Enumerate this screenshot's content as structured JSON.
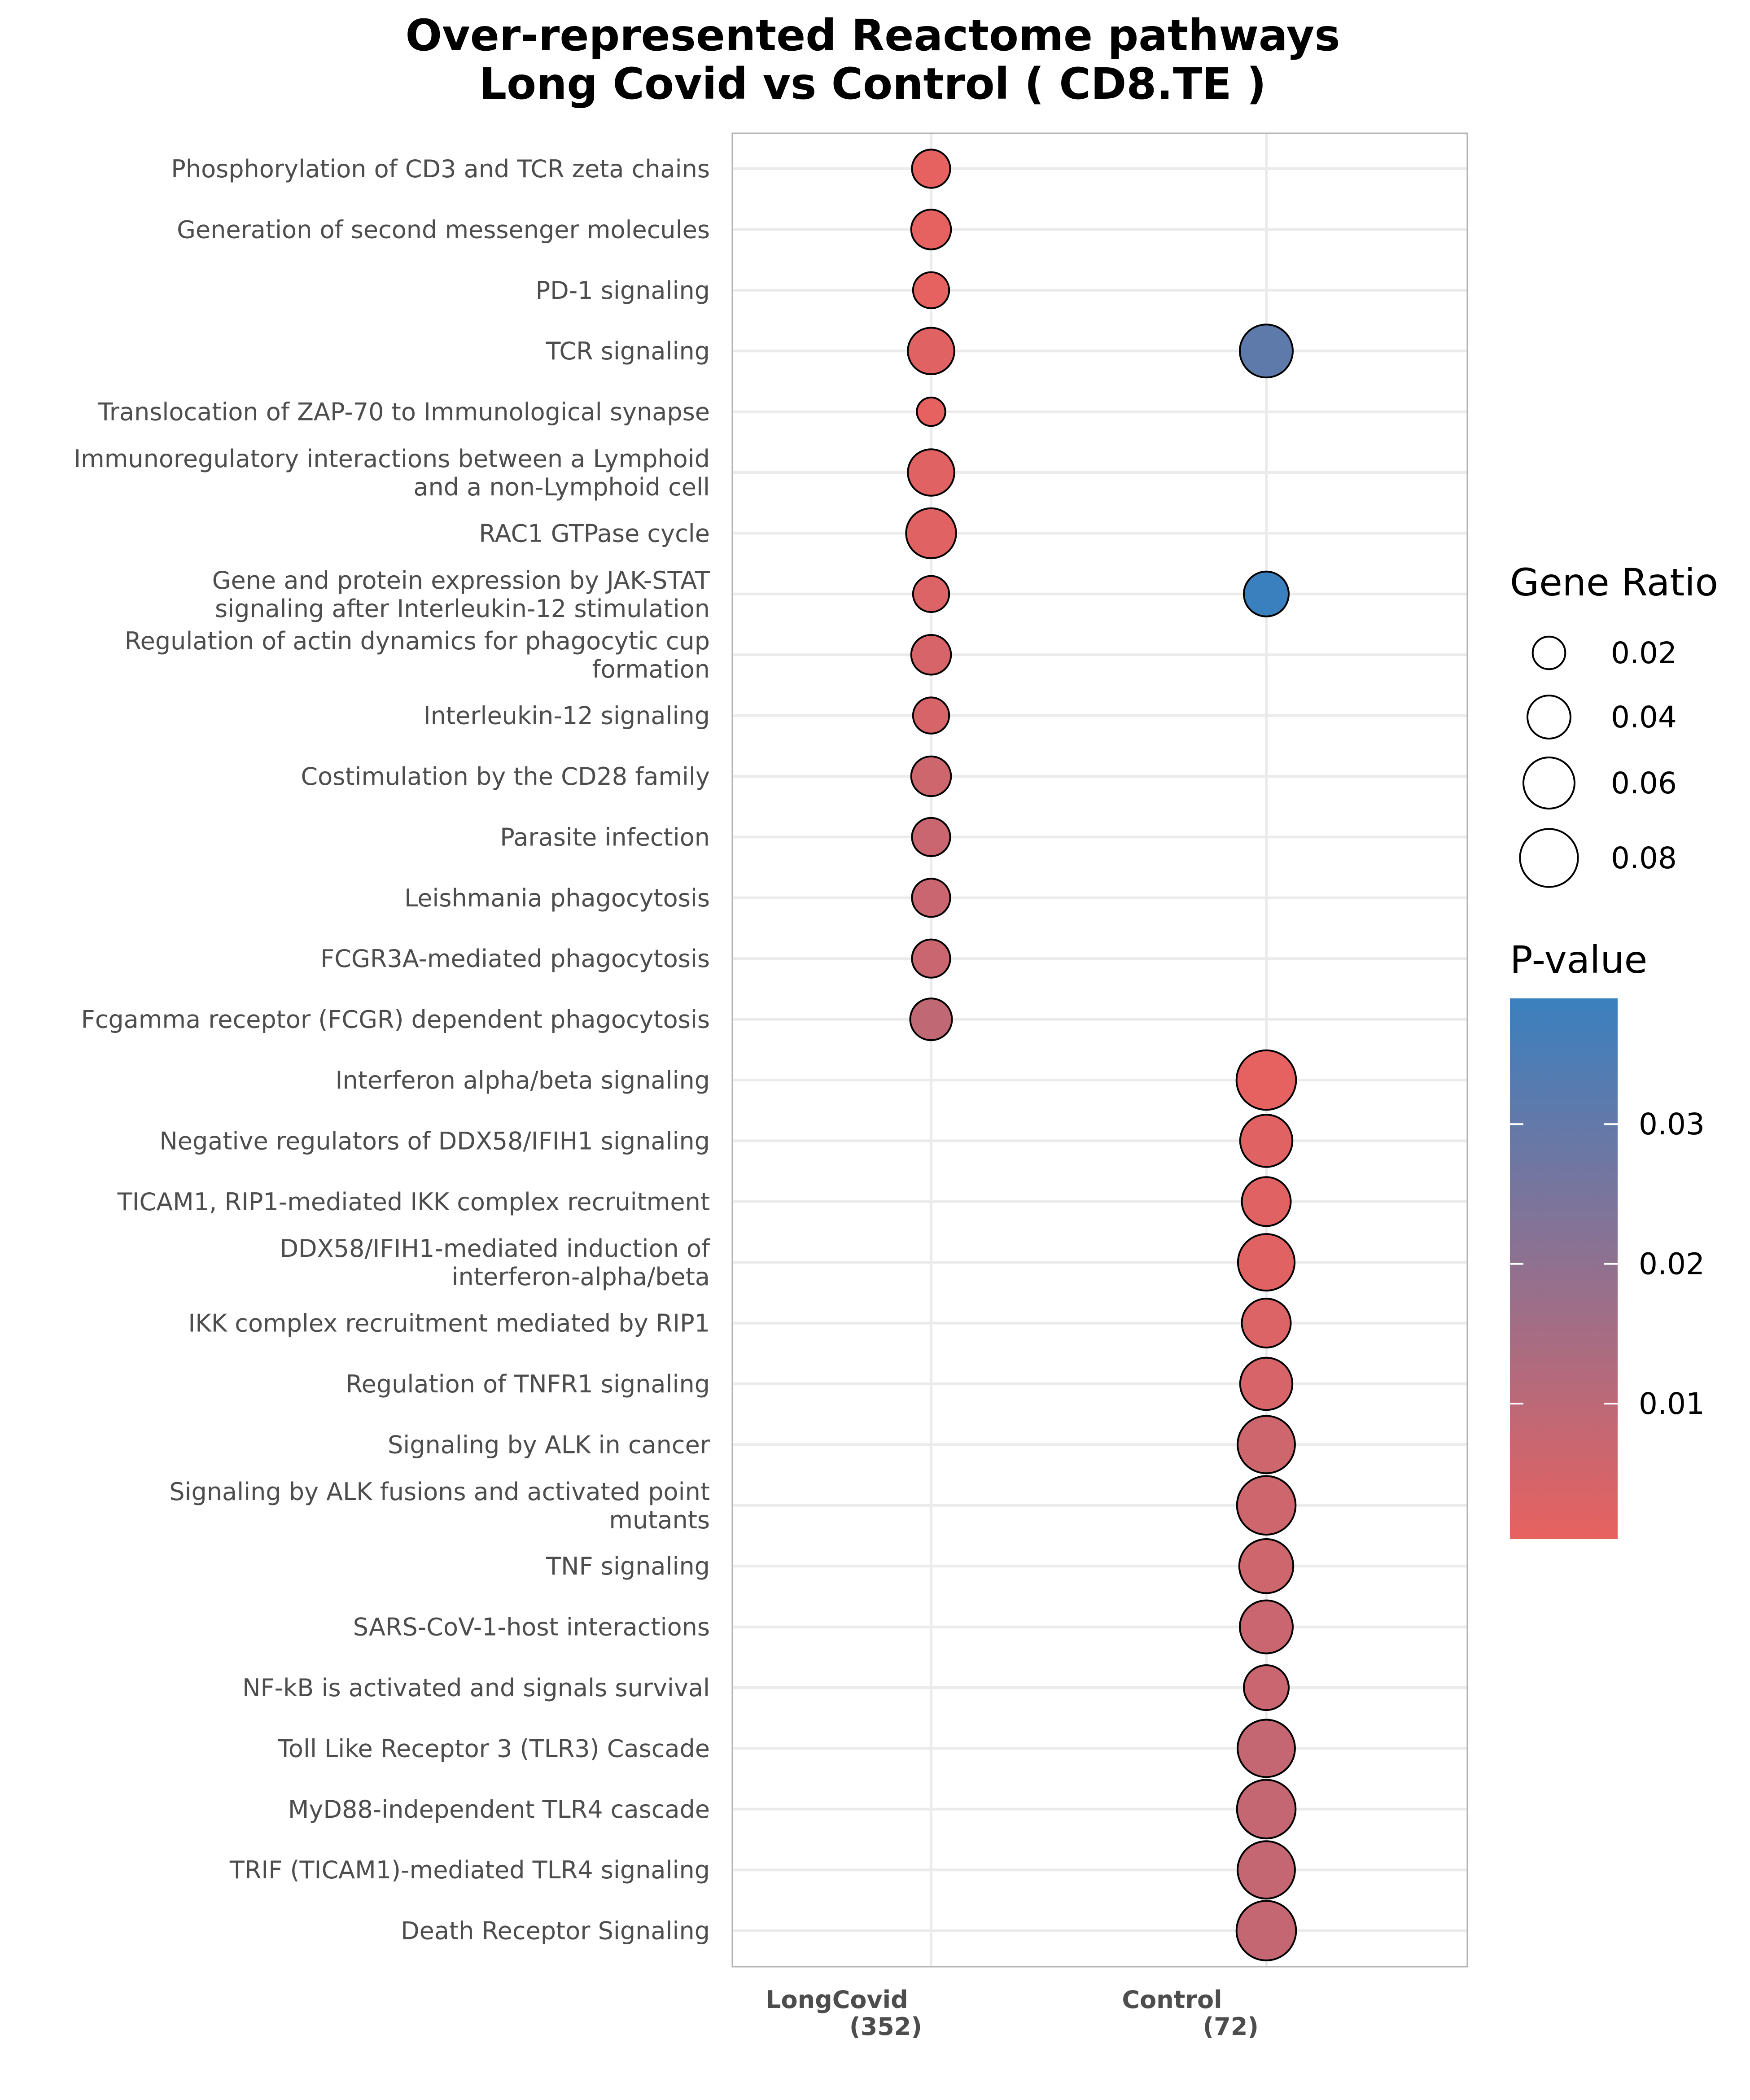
{
  "chart_data": {
    "type": "scatter",
    "title": [
      "Over-represented Reactome pathways",
      "Long Covid vs Control ( CD8.TE )"
    ],
    "x_categories": [
      {
        "name": "LongCovid",
        "count": "(352)"
      },
      {
        "name": "Control",
        "count": "(72)"
      }
    ],
    "y_categories": [
      [
        "Phosphorylation of CD3 and TCR zeta chains"
      ],
      [
        "Generation of second messenger molecules"
      ],
      [
        "PD-1 signaling"
      ],
      [
        "TCR signaling"
      ],
      [
        "Translocation of ZAP-70 to Immunological synapse"
      ],
      [
        "Immunoregulatory interactions between a Lymphoid",
        "and a non-Lymphoid cell"
      ],
      [
        "RAC1 GTPase cycle"
      ],
      [
        "Gene and protein expression by JAK-STAT",
        "signaling after Interleukin-12 stimulation"
      ],
      [
        "Regulation of actin dynamics for phagocytic cup",
        "formation"
      ],
      [
        "Interleukin-12 signaling"
      ],
      [
        "Costimulation by the CD28 family"
      ],
      [
        "Parasite infection"
      ],
      [
        "Leishmania phagocytosis"
      ],
      [
        "FCGR3A-mediated phagocytosis"
      ],
      [
        "Fcgamma receptor (FCGR) dependent phagocytosis"
      ],
      [
        "Interferon alpha/beta signaling"
      ],
      [
        "Negative regulators of DDX58/IFIH1 signaling"
      ],
      [
        "TICAM1, RIP1-mediated IKK complex recruitment"
      ],
      [
        "DDX58/IFIH1-mediated induction of",
        "interferon-alpha/beta"
      ],
      [
        "IKK complex recruitment mediated by RIP1"
      ],
      [
        "Regulation of TNFR1 signaling"
      ],
      [
        "Signaling by ALK in cancer"
      ],
      [
        "Signaling by ALK fusions and activated point",
        "mutants"
      ],
      [
        "TNF signaling"
      ],
      [
        "SARS-CoV-1-host interactions"
      ],
      [
        "NF-kB is activated and signals survival"
      ],
      [
        "Toll Like Receptor 3 (TLR3) Cascade"
      ],
      [
        "MyD88-independent TLR4 cascade"
      ],
      [
        "TRIF (TICAM1)-mediated TLR4 signaling"
      ],
      [
        "Death Receptor Signaling"
      ]
    ],
    "points": [
      {
        "x": 0,
        "y": 0,
        "gene_ratio": 0.03,
        "p_value": 0.001
      },
      {
        "x": 0,
        "y": 1,
        "gene_ratio": 0.033,
        "p_value": 0.001
      },
      {
        "x": 0,
        "y": 2,
        "gene_ratio": 0.026,
        "p_value": 0.001
      },
      {
        "x": 0,
        "y": 3,
        "gene_ratio": 0.048,
        "p_value": 0.002
      },
      {
        "x": 0,
        "y": 4,
        "gene_ratio": 0.014,
        "p_value": 0.001
      },
      {
        "x": 0,
        "y": 5,
        "gene_ratio": 0.048,
        "p_value": 0.002
      },
      {
        "x": 0,
        "y": 6,
        "gene_ratio": 0.057,
        "p_value": 0.002
      },
      {
        "x": 0,
        "y": 7,
        "gene_ratio": 0.026,
        "p_value": 0.003
      },
      {
        "x": 0,
        "y": 8,
        "gene_ratio": 0.033,
        "p_value": 0.004
      },
      {
        "x": 0,
        "y": 9,
        "gene_ratio": 0.026,
        "p_value": 0.004
      },
      {
        "x": 0,
        "y": 10,
        "gene_ratio": 0.033,
        "p_value": 0.006
      },
      {
        "x": 0,
        "y": 11,
        "gene_ratio": 0.03,
        "p_value": 0.007
      },
      {
        "x": 0,
        "y": 12,
        "gene_ratio": 0.03,
        "p_value": 0.007
      },
      {
        "x": 0,
        "y": 13,
        "gene_ratio": 0.03,
        "p_value": 0.007
      },
      {
        "x": 0,
        "y": 14,
        "gene_ratio": 0.037,
        "p_value": 0.009
      },
      {
        "x": 1,
        "y": 3,
        "gene_ratio": 0.065,
        "p_value": 0.031
      },
      {
        "x": 1,
        "y": 7,
        "gene_ratio": 0.044,
        "p_value": 0.039
      },
      {
        "x": 1,
        "y": 15,
        "gene_ratio": 0.085,
        "p_value": 0.001
      },
      {
        "x": 1,
        "y": 16,
        "gene_ratio": 0.063,
        "p_value": 0.002
      },
      {
        "x": 1,
        "y": 17,
        "gene_ratio": 0.054,
        "p_value": 0.002
      },
      {
        "x": 1,
        "y": 18,
        "gene_ratio": 0.076,
        "p_value": 0.002
      },
      {
        "x": 1,
        "y": 19,
        "gene_ratio": 0.054,
        "p_value": 0.003
      },
      {
        "x": 1,
        "y": 20,
        "gene_ratio": 0.063,
        "p_value": 0.004
      },
      {
        "x": 1,
        "y": 21,
        "gene_ratio": 0.078,
        "p_value": 0.006
      },
      {
        "x": 1,
        "y": 22,
        "gene_ratio": 0.082,
        "p_value": 0.006
      },
      {
        "x": 1,
        "y": 23,
        "gene_ratio": 0.068,
        "p_value": 0.006
      },
      {
        "x": 1,
        "y": 24,
        "gene_ratio": 0.065,
        "p_value": 0.007
      },
      {
        "x": 1,
        "y": 25,
        "gene_ratio": 0.044,
        "p_value": 0.007
      },
      {
        "x": 1,
        "y": 26,
        "gene_ratio": 0.078,
        "p_value": 0.008
      },
      {
        "x": 1,
        "y": 27,
        "gene_ratio": 0.082,
        "p_value": 0.008
      },
      {
        "x": 1,
        "y": 28,
        "gene_ratio": 0.078,
        "p_value": 0.008
      },
      {
        "x": 1,
        "y": 29,
        "gene_ratio": 0.085,
        "p_value": 0.008
      }
    ],
    "size_legend": {
      "title": "Gene Ratio",
      "breaks": [
        0.02,
        0.04,
        0.06,
        0.08
      ],
      "labels": [
        "0.02",
        "0.04",
        "0.06",
        "0.08"
      ]
    },
    "color_legend": {
      "title": "P-value",
      "breaks": [
        0.01,
        0.02,
        0.03
      ],
      "labels": [
        "0.01",
        "0.02",
        "0.03"
      ],
      "range": [
        0.0003,
        0.039
      ],
      "low_color": "#e8615f",
      "high_color": "#3a80bf"
    },
    "grid": true,
    "colors": {
      "marker_outline": "#000000",
      "grid": "#ebebeb",
      "panel_border": "#b3b3b3"
    }
  }
}
